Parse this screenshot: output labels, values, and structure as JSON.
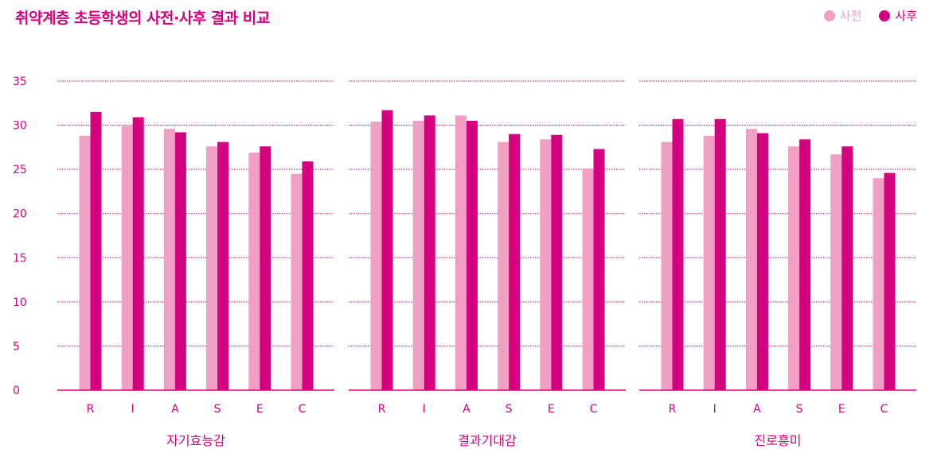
{
  "chart_data": {
    "type": "bar",
    "title": "취약계층 초등학생의 사전·사후 결과 비교",
    "categories": [
      "R",
      "I",
      "A",
      "S",
      "E",
      "C"
    ],
    "ylim": [
      0,
      35
    ],
    "yticks": [
      "0",
      "5",
      "10",
      "15",
      "20",
      "25",
      "30",
      "35"
    ],
    "legend_position": "top-right",
    "grid": true,
    "series_legend": [
      {
        "name": "사전",
        "color": "#f29fc5"
      },
      {
        "name": "사후",
        "color": "#d4007f"
      }
    ],
    "panels": [
      {
        "title": "자기효능감",
        "series": [
          {
            "name": "사전",
            "values": [
              28.8,
              29.9,
              29.6,
              27.6,
              26.9,
              24.5
            ]
          },
          {
            "name": "사후",
            "values": [
              31.5,
              30.9,
              29.2,
              28.1,
              27.6,
              25.9
            ]
          }
        ]
      },
      {
        "title": "결과기대감",
        "series": [
          {
            "name": "사전",
            "values": [
              30.4,
              30.5,
              31.1,
              28.1,
              28.4,
              25.1
            ]
          },
          {
            "name": "사후",
            "values": [
              31.7,
              31.1,
              30.5,
              29.0,
              28.9,
              27.3
            ]
          }
        ]
      },
      {
        "title": "진로흥미",
        "series": [
          {
            "name": "사전",
            "values": [
              28.1,
              28.8,
              29.6,
              27.6,
              26.7,
              24.0
            ]
          },
          {
            "name": "사후",
            "values": [
              30.7,
              30.7,
              29.1,
              28.4,
              27.6,
              24.6
            ]
          }
        ]
      }
    ]
  }
}
